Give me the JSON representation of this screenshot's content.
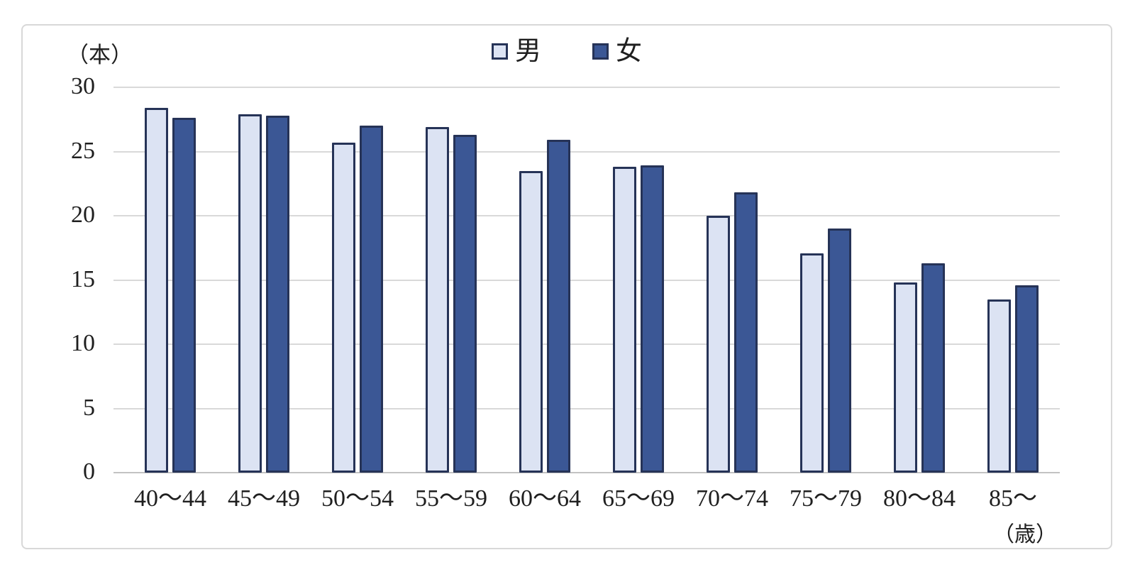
{
  "figure": {
    "y_unit_label": "（本）",
    "x_unit_label": "（歳）"
  },
  "chart_data": {
    "type": "bar",
    "title": "",
    "categories": [
      "40～44",
      "45～49",
      "50～54",
      "55～59",
      "60～64",
      "65～69",
      "70～74",
      "75～79",
      "80～84",
      "85～"
    ],
    "series": [
      {
        "name": "男",
        "values": [
          28.4,
          27.9,
          25.7,
          26.9,
          23.5,
          23.8,
          20.0,
          17.1,
          14.8,
          13.5
        ],
        "fill_color": "#dce3f3",
        "border_color": "#263357"
      },
      {
        "name": "女",
        "values": [
          27.6,
          27.8,
          27.0,
          26.3,
          25.9,
          23.9,
          21.8,
          19.0,
          16.3,
          14.6
        ],
        "fill_color": "#3b5795",
        "border_color": "#263357"
      }
    ],
    "ylabel": "（本）",
    "xlabel": "（歳）",
    "ylim": [
      0,
      30
    ],
    "yticks": [
      0,
      5,
      10,
      15,
      20,
      25,
      30
    ],
    "grid": true,
    "legend_position": "top-center"
  },
  "colors": {
    "male_fill": "#dce3f3",
    "female_fill": "#3b5795",
    "bar_border": "#263357",
    "gridline": "#d9d9d9",
    "axis_line": "#c3c3c3",
    "text": "#1f1f1f",
    "frame_border": "#d8d8d8",
    "background": "#ffffff"
  }
}
